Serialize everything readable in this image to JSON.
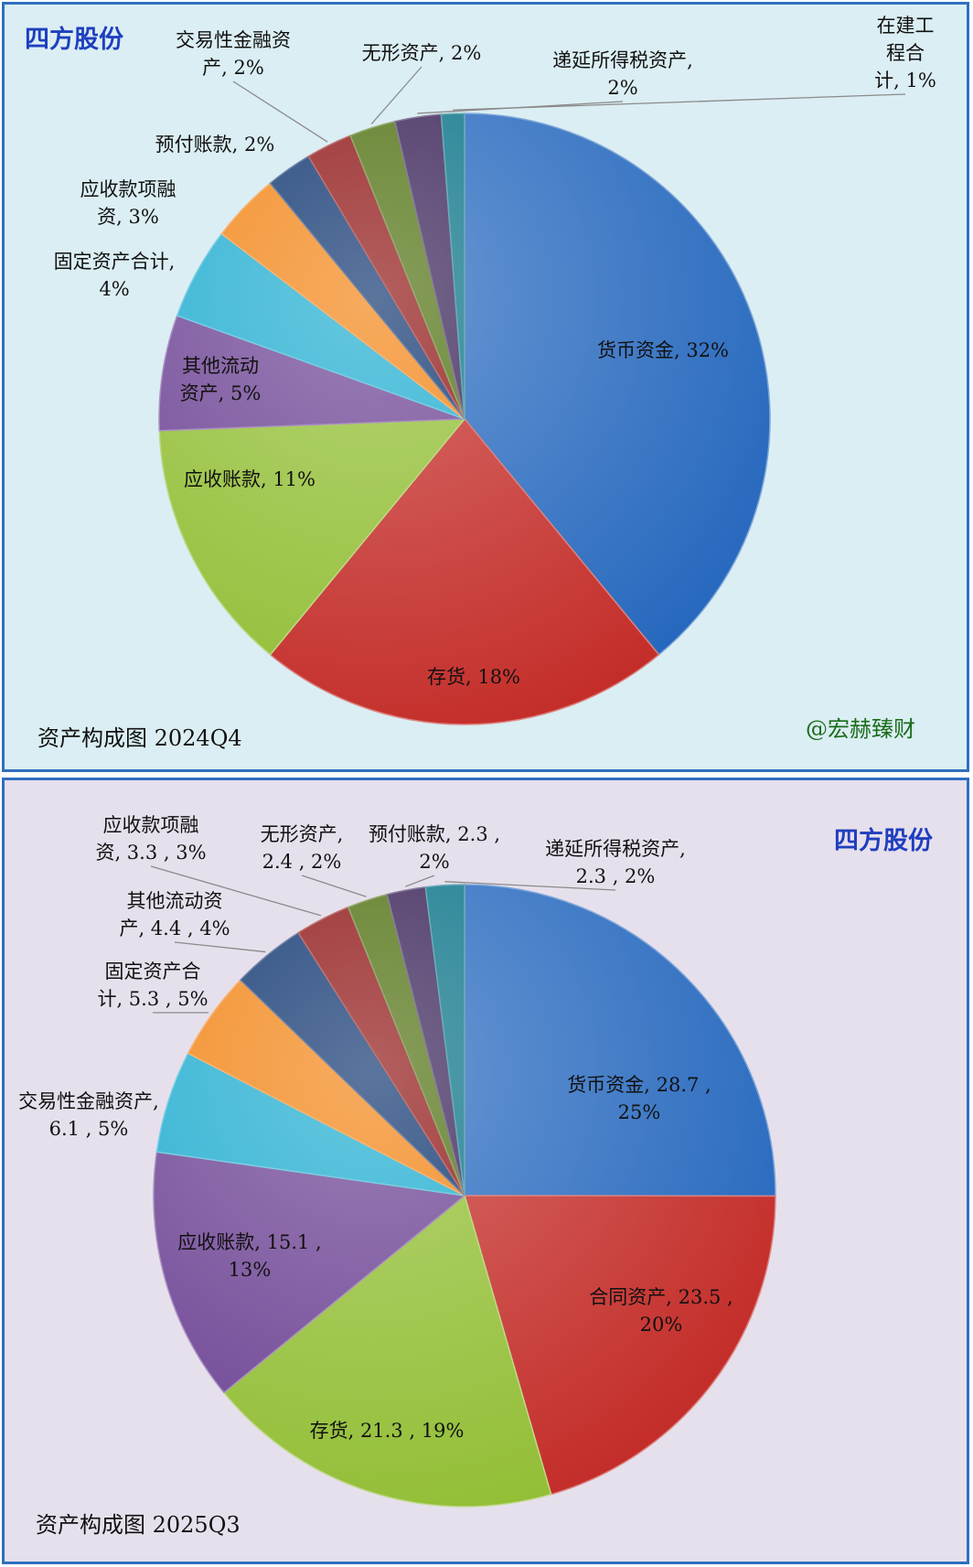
{
  "chart_data": [
    {
      "type": "pie",
      "brand": "四方股份",
      "caption": "资产构成图 2024Q4",
      "watermark": "@宏赫臻财",
      "slices": [
        {
          "name": "货币资金",
          "percent": 32,
          "color": "#3a76c4",
          "label_lines": [
            "货币资金, 32%"
          ]
        },
        {
          "name": "存货",
          "percent": 18,
          "color": "#c9403c",
          "label_lines": [
            "存货, 18%"
          ]
        },
        {
          "name": "应收账款",
          "percent": 11,
          "color": "#9cc447",
          "label_lines": [
            "应收账款, 11%"
          ]
        },
        {
          "name": "其他流动资产",
          "percent": 5,
          "color": "#7b559e",
          "label_lines": [
            "其他流动",
            "资产, 5%"
          ]
        },
        {
          "name": "固定资产合计",
          "percent": 4,
          "color": "#34b4d4",
          "label_lines": [
            "固定资产合计,",
            "4%"
          ]
        },
        {
          "name": "应收款项融资",
          "percent": 3,
          "color": "#f38f2a",
          "label_lines": [
            "应收款项融",
            "资, 3%"
          ]
        },
        {
          "name": "预付账款",
          "percent": 2,
          "color": "#24477c",
          "label_lines": [
            "预付账款, 2%"
          ]
        },
        {
          "name": "交易性金融资产",
          "percent": 2,
          "color": "#992a2a",
          "label_lines": [
            "交易性金融资",
            "产, 2%"
          ]
        },
        {
          "name": "无形资产",
          "percent": 2,
          "color": "#5f7d26",
          "label_lines": [
            "无形资产, 2%"
          ]
        },
        {
          "name": "递延所得税资产",
          "percent": 2,
          "color": "#4a3566",
          "label_lines": [
            "递延所得税资产,",
            "2%"
          ]
        },
        {
          "name": "在建工程合计",
          "percent": 1,
          "color": "#1f7f92",
          "label_lines": [
            "在建工",
            "程合",
            "计, 1%"
          ]
        }
      ]
    },
    {
      "type": "pie",
      "brand": "四方股份",
      "caption": "资产构成图 2025Q3",
      "slices": [
        {
          "name": "货币资金",
          "value": 28.7,
          "percent": 25,
          "color": "#3a76c4",
          "label_lines": [
            "货币资金, 28.7 ,",
            "25%"
          ]
        },
        {
          "name": "合同资产",
          "value": 23.5,
          "percent": 20,
          "color": "#c9403c",
          "label_lines": [
            "合同资产, 23.5 ,",
            "20%"
          ]
        },
        {
          "name": "存货",
          "value": 21.3,
          "percent": 19,
          "color": "#9cc447",
          "label_lines": [
            "存货, 21.3 , 19%"
          ]
        },
        {
          "name": "应收账款",
          "value": 15.1,
          "percent": 13,
          "color": "#7b559e",
          "label_lines": [
            "应收账款, 15.1 ,",
            "13%"
          ]
        },
        {
          "name": "交易性金融资产",
          "value": 6.1,
          "percent": 5,
          "color": "#34b4d4",
          "label_lines": [
            "交易性金融资产,",
            "6.1 , 5%"
          ]
        },
        {
          "name": "固定资产合计",
          "value": 5.3,
          "percent": 5,
          "color": "#f38f2a",
          "label_lines": [
            "固定资产合",
            "计, 5.3 , 5%"
          ]
        },
        {
          "name": "其他流动资产",
          "value": 4.4,
          "percent": 4,
          "color": "#24477c",
          "label_lines": [
            "其他流动资",
            "产, 4.4 , 4%"
          ]
        },
        {
          "name": "应收款项融资",
          "value": 3.3,
          "percent": 3,
          "color": "#992a2a",
          "label_lines": [
            "应收款项融",
            "资, 3.3 , 3%"
          ]
        },
        {
          "name": "无形资产",
          "value": 2.4,
          "percent": 2,
          "color": "#5f7d26",
          "label_lines": [
            "无形资产,",
            "2.4 , 2%"
          ]
        },
        {
          "name": "预付账款",
          "value": 2.3,
          "percent": 2,
          "color": "#4a3566",
          "label_lines": [
            "预付账款, 2.3 ,",
            "2%"
          ]
        },
        {
          "name": "递延所得税资产",
          "value": 2.3,
          "percent": 2,
          "color": "#1f7f92",
          "label_lines": [
            "递延所得税资产,",
            "2.3 , 2%"
          ]
        }
      ]
    }
  ]
}
